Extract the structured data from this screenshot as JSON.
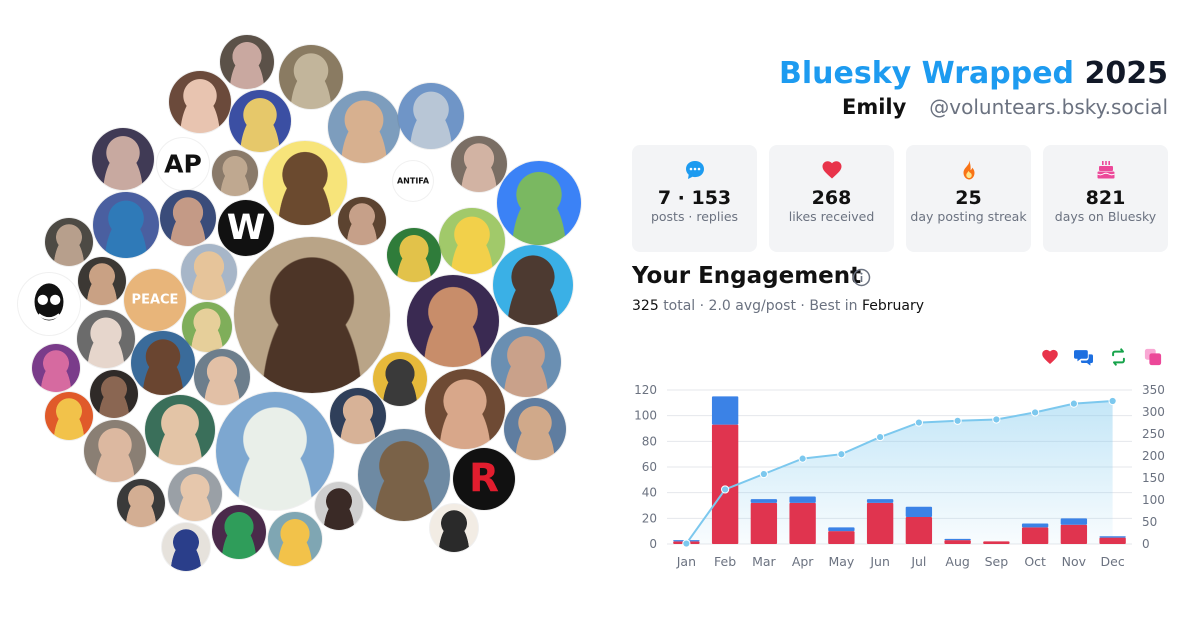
{
  "header": {
    "title_brand": "Bluesky Wrapped",
    "title_year": "2025",
    "display_name": "Emily",
    "handle": "@voluntears.bsky.social"
  },
  "stats": [
    {
      "icon": "speech-bubble-icon",
      "value": "7 · 153",
      "label": "posts · replies",
      "color": "#1d9bf0"
    },
    {
      "icon": "heart-icon",
      "value": "268",
      "label": "likes received",
      "color": "#e8334a"
    },
    {
      "icon": "fire-icon",
      "value": "25",
      "label": "day posting streak",
      "color": "#f97316"
    },
    {
      "icon": "cake-icon",
      "value": "821",
      "label": "days on Bluesky",
      "color": "#ec4899"
    }
  ],
  "engagement": {
    "title": "Your Engagement",
    "total_value": "325",
    "total_text": "total · 2.0 avg/post · Best in",
    "best_month": "February"
  },
  "legend_icons": [
    {
      "icon": "heart-icon",
      "color": "#e8334a"
    },
    {
      "icon": "reply-icon",
      "color": "#1d6fe0"
    },
    {
      "icon": "repost-icon",
      "color": "#16a34a"
    },
    {
      "icon": "quote-icon",
      "color": "#ec4899"
    }
  ],
  "avatars": [
    {
      "initials": "AP",
      "bg": "#ffffff",
      "fg": "#111111"
    },
    {
      "initials": "ANTIFA",
      "bg": "#ffffff",
      "fg": "#111111"
    },
    {
      "initials": "PEACE",
      "bg": "#e8b57a",
      "fg": "#ffffff"
    },
    {
      "initials": "R",
      "bg": "#111111",
      "fg": "#e11d2e"
    },
    {
      "initials": "W",
      "bg": "#111111",
      "fg": "#ffffff"
    }
  ],
  "chart_data": {
    "type": "bar",
    "categories": [
      "Jan",
      "Feb",
      "Mar",
      "Apr",
      "May",
      "Jun",
      "Jul",
      "Aug",
      "Sep",
      "Oct",
      "Nov",
      "Dec"
    ],
    "series": [
      {
        "values": [
          2,
          93,
          32,
          32,
          10,
          32,
          21,
          3,
          2,
          13,
          15,
          5
        ],
        "color": "#e0344f"
      },
      {
        "values": [
          1,
          22,
          3,
          5,
          3,
          3,
          8,
          1,
          0,
          3,
          5,
          1
        ],
        "color": "#3b82e6"
      }
    ],
    "line": {
      "values": [
        1,
        124,
        159,
        194,
        204,
        243,
        276,
        280,
        283,
        299,
        319,
        325
      ],
      "color": "#7cc8ee"
    },
    "ylim": [
      0,
      120
    ],
    "ylim_right": [
      0,
      350
    ],
    "yticks": [
      0,
      20,
      40,
      60,
      80,
      100,
      120
    ],
    "yticks_right": [
      0,
      50,
      100,
      150,
      200,
      250,
      300,
      350
    ],
    "grid": true
  }
}
